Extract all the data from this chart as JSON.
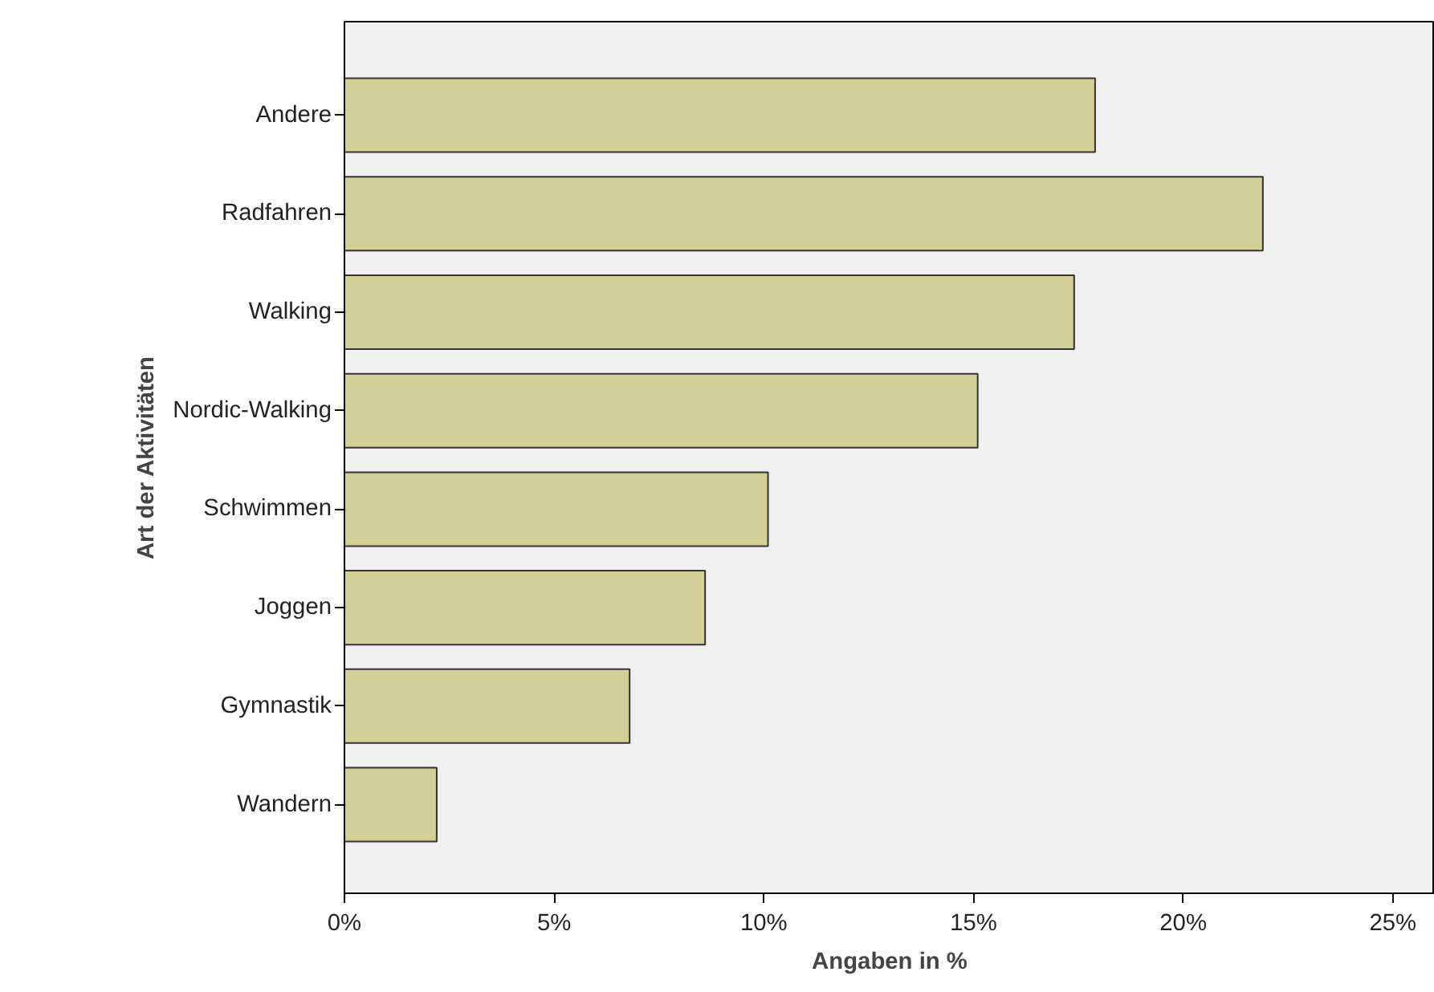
{
  "chart_data": {
    "type": "bar",
    "orientation": "horizontal",
    "xlabel": "Angaben in %",
    "ylabel": "Art der Aktivitäten",
    "categories": [
      "Andere",
      "Radfahren",
      "Walking",
      "Nordic-Walking",
      "Schwimmen",
      "Joggen",
      "Gymnastik",
      "Wandern"
    ],
    "values": [
      17.9,
      21.9,
      17.4,
      15.1,
      10.1,
      8.6,
      6.8,
      2.2
    ],
    "color": "#d4cf98",
    "xlim": [
      0,
      26
    ],
    "xticks": [
      {
        "value": 0,
        "label": "0%"
      },
      {
        "value": 5,
        "label": "5%"
      },
      {
        "value": 10,
        "label": "10%"
      },
      {
        "value": 15,
        "label": "15%"
      },
      {
        "value": 20,
        "label": "20%"
      },
      {
        "value": 25,
        "label": "25%"
      }
    ],
    "grid": false
  }
}
